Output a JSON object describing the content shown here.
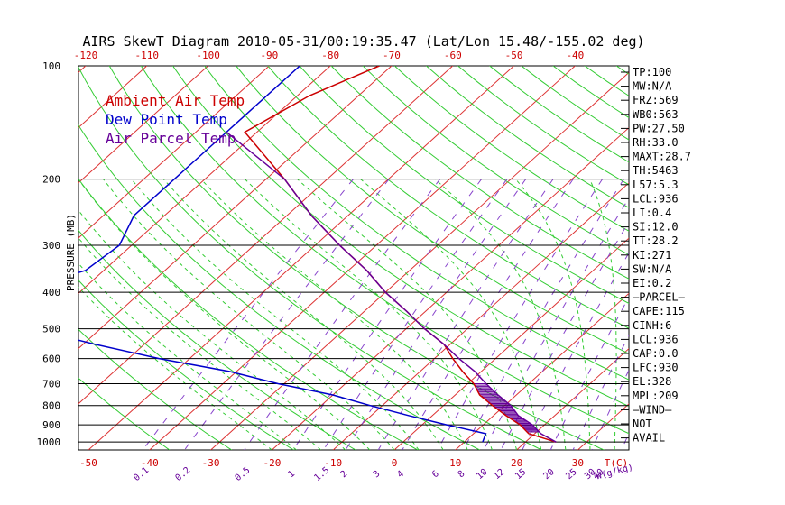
{
  "chart_data": {
    "type": "skewt",
    "title": "AIRS SkewT Diagram 2010-05-31/00:19:35.47 (Lat/Lon 15.48/-155.02 deg)",
    "ylabel": "PRESSURE (MB)",
    "pressure_ticks": [
      100,
      200,
      300,
      400,
      500,
      600,
      700,
      800,
      900,
      1000
    ],
    "top_temp_ticks": [
      -120,
      -110,
      -100,
      -90,
      -80,
      -70,
      -60,
      -50,
      -40
    ],
    "bottom_temp_ticks": [
      -50,
      -40,
      -30,
      -20,
      -10,
      0,
      10,
      20,
      30
    ],
    "bottom_temp_unit": "T(C)",
    "mixing_ratio_ticks": [
      "0.1",
      "0.2",
      "0.5",
      "1",
      "1.5",
      "2",
      "3",
      "4",
      "6",
      "8",
      "10",
      "12",
      "15",
      "20",
      "25",
      "30",
      "40"
    ],
    "mixing_ratio_unit": "W(g/kg)",
    "legend": [
      {
        "label": "Ambient Air Temp",
        "color": "#cc0000"
      },
      {
        "label": "Dew Point Temp",
        "color": "#0000cc"
      },
      {
        "label": "Air Parcel Temp",
        "color": "#660099"
      }
    ],
    "series": [
      {
        "name": "Ambient Air Temp",
        "color": "#cc0000",
        "p": [
          100,
          120,
          150,
          200,
          250,
          300,
          350,
          400,
          450,
          500,
          550,
          600,
          650,
          700,
          750,
          800,
          850,
          900,
          950,
          1000
        ],
        "t": [
          -72,
          -78,
          -82,
          -67,
          -56,
          -46,
          -37,
          -30,
          -23,
          -17,
          -11,
          -7,
          -3,
          1,
          4,
          8,
          12,
          16,
          19,
          25
        ]
      },
      {
        "name": "Dew Point Temp",
        "color": "#0000cc",
        "p": [
          100,
          150,
          180,
          200,
          250,
          300,
          350,
          400,
          450,
          500,
          550,
          600,
          650,
          700,
          750,
          800,
          850,
          900,
          950,
          1000
        ],
        "t": [
          -85,
          -85,
          -85,
          -85,
          -85,
          -82,
          -83,
          -91,
          -86,
          -81,
          -68,
          -55,
          -41,
          -31,
          -20,
          -12,
          -4,
          4,
          12,
          13
        ]
      },
      {
        "name": "Air Parcel Temp",
        "color": "#660099",
        "p": [
          150,
          200,
          250,
          300,
          350,
          400,
          450,
          500,
          550,
          600,
          650,
          700,
          750,
          800,
          850,
          900,
          950,
          1000
        ],
        "t": [
          -85,
          -67,
          -56,
          -46,
          -37,
          -30,
          -23,
          -17,
          -11,
          -6,
          -1,
          3,
          7,
          11,
          14,
          18,
          21,
          25
        ]
      }
    ]
  },
  "stats": [
    "TP:100",
    "MW:N/A",
    "FRZ:569",
    "WB0:563",
    "PW:27.50",
    "RH:33.0",
    "MAXT:28.7",
    "TH:5463",
    "L57:5.3",
    "LCL:936",
    "LI:0.4",
    "SI:12.0",
    "TT:28.2",
    "KI:271",
    "SW:N/A",
    "EI:0.2",
    "—PARCEL—",
    "CAPE:115",
    "CINH:6",
    "LCL:936",
    "CAP:0.0",
    "LFC:930",
    "EL:328",
    "MPL:209",
    "—WIND—",
    "NOT",
    "AVAIL"
  ]
}
